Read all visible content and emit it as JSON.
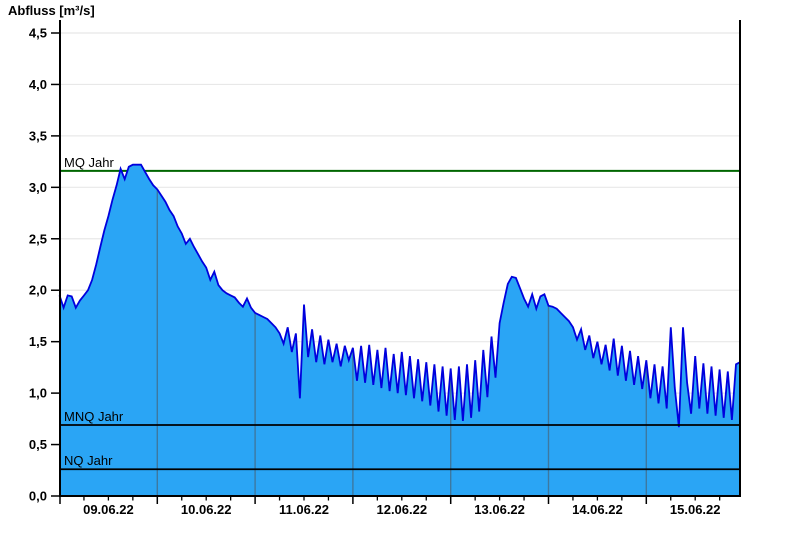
{
  "title": "Abfluss [m³/s]",
  "y_axis": {
    "min": 0,
    "max": 4.5,
    "step": 0.5,
    "tick_labels": [
      "0,0",
      "0,5",
      "1,0",
      "1,5",
      "2,0",
      "2,5",
      "3,0",
      "3,5",
      "4,0",
      "4,5"
    ]
  },
  "x_axis": {
    "tick_labels": [
      "09.06.22",
      "10.06.22",
      "11.06.22",
      "12.06.22",
      "13.06.22",
      "14.06.22",
      "15.06.22"
    ],
    "minor_ticks_per_day": 4
  },
  "reference_lines": [
    {
      "label": "MQ Jahr",
      "value": 3.16,
      "color": "#006600",
      "behind_fill": true
    },
    {
      "label": "MNQ Jahr",
      "value": 0.69,
      "color": "#000000",
      "behind_fill": false
    },
    {
      "label": "NQ Jahr",
      "value": 0.26,
      "color": "#000000",
      "behind_fill": false
    }
  ],
  "chart_data": {
    "type": "area",
    "title": "Abfluss [m³/s]",
    "ylabel": "Abfluss [m³/s]",
    "unit": "m³/s",
    "ylim": [
      0,
      4.5
    ],
    "x_start": "09.06.22 00:00",
    "x_end": "15.06.22 23:00",
    "step_hours": 1,
    "x_tick_labels": [
      "09.06.22",
      "10.06.22",
      "11.06.22",
      "12.06.22",
      "13.06.22",
      "14.06.22",
      "15.06.22"
    ],
    "values": [
      1.95,
      1.83,
      1.95,
      1.94,
      1.83,
      1.9,
      1.95,
      2.0,
      2.1,
      2.25,
      2.42,
      2.58,
      2.72,
      2.88,
      3.02,
      3.18,
      3.08,
      3.2,
      3.22,
      3.22,
      3.22,
      3.15,
      3.08,
      3.02,
      2.98,
      2.92,
      2.86,
      2.78,
      2.72,
      2.62,
      2.55,
      2.45,
      2.5,
      2.42,
      2.35,
      2.28,
      2.22,
      2.1,
      2.18,
      2.05,
      2.0,
      1.97,
      1.95,
      1.93,
      1.88,
      1.84,
      1.92,
      1.83,
      1.78,
      1.76,
      1.74,
      1.72,
      1.68,
      1.64,
      1.58,
      1.48,
      1.64,
      1.4,
      1.58,
      0.95,
      1.86,
      1.35,
      1.62,
      1.3,
      1.56,
      1.28,
      1.52,
      1.3,
      1.48,
      1.26,
      1.46,
      1.32,
      1.44,
      1.12,
      1.46,
      1.1,
      1.47,
      1.08,
      1.42,
      1.05,
      1.44,
      1.02,
      1.38,
      1.0,
      1.4,
      0.98,
      1.36,
      0.95,
      1.33,
      0.92,
      1.3,
      0.88,
      1.28,
      0.82,
      1.26,
      0.78,
      1.24,
      0.74,
      1.26,
      0.73,
      1.28,
      0.76,
      1.32,
      0.82,
      1.42,
      0.96,
      1.55,
      1.15,
      1.68,
      1.88,
      2.06,
      2.13,
      2.12,
      2.02,
      1.92,
      1.84,
      1.96,
      1.82,
      1.94,
      1.96,
      1.85,
      1.84,
      1.82,
      1.78,
      1.74,
      1.7,
      1.64,
      1.52,
      1.62,
      1.42,
      1.56,
      1.34,
      1.5,
      1.28,
      1.47,
      1.22,
      1.53,
      1.17,
      1.46,
      1.12,
      1.41,
      1.08,
      1.36,
      1.04,
      1.32,
      0.95,
      1.28,
      0.9,
      1.26,
      0.85,
      1.64,
      1.05,
      0.67,
      1.64,
      1.1,
      0.8,
      1.36,
      0.85,
      1.29,
      0.8,
      1.26,
      0.78,
      1.23,
      0.76,
      1.21,
      0.74,
      1.28,
      1.3
    ],
    "fill_color": "#2aa5f5",
    "line_color": "#0000dd",
    "grid_color": "#e8e8e8",
    "day_line_color": "#3d78a0",
    "axis_color": "#000000"
  }
}
